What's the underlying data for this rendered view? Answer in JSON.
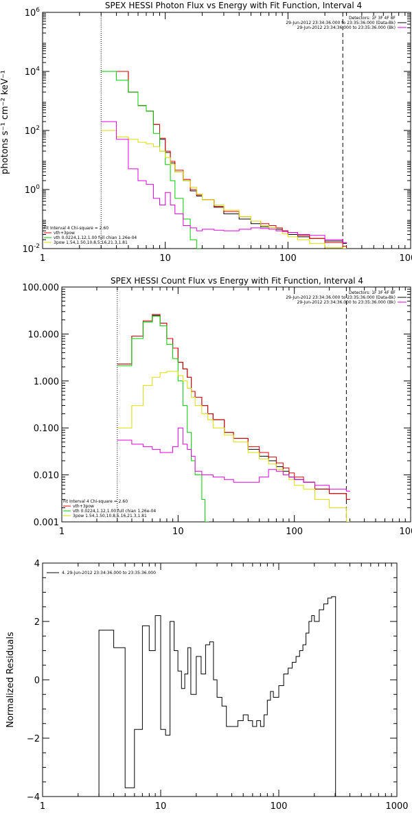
{
  "chart_data": [
    {
      "type": "line",
      "title": "SPEX HESSI Photon Flux vs Energy with Fit Function, Interval 4",
      "ylabel": "photons s⁻¹ cm⁻² keV⁻¹",
      "xlabel": "",
      "xscale": "log",
      "yscale": "log",
      "xlim": [
        1,
        1000
      ],
      "ylim": [
        0.01,
        1000000
      ],
      "x_ticks": [
        "1",
        "10",
        "100",
        "1000"
      ],
      "y_ticks": [
        {
          "v": 0.01,
          "base": "10",
          "exp": "-2"
        },
        {
          "v": 1,
          "base": "10",
          "exp": "0"
        },
        {
          "v": 100,
          "base": "10",
          "exp": "2"
        },
        {
          "v": 10000,
          "base": "10",
          "exp": "4"
        },
        {
          "v": 1000000,
          "base": "10",
          "exp": "6"
        }
      ],
      "vlines": [
        {
          "x": 3,
          "style": "dotted"
        },
        {
          "x": 280,
          "style": "dashed"
        }
      ],
      "legend_top": [
        "Detectors: 1F 3F 4F 8F",
        "29-Jun-2012 23:34:36.000 to 23:35:36.000 (Data-Bk)",
        "29-Jun-2012 23:34:36.000 to 23:35:36.000 (Bk)"
      ],
      "legend_bottom": [
        "Fit Interval 4   Chi-square = 2.60",
        "vth+3pow",
        "vth 0.0224,1.12,1.00  full chian 1.26e-04",
        "3pow 1.54,1.50,10.8,5.16,21.3,1.81"
      ],
      "legend_bottom_colors": [
        "#000000",
        "#e00000",
        "#00cc00",
        "#dddd00"
      ],
      "series": [
        {
          "color": "#000000",
          "x": [
            3,
            4,
            5,
            6,
            7,
            8,
            9,
            10,
            11,
            12,
            14,
            16,
            18,
            20,
            25,
            30,
            40,
            50,
            60,
            70,
            80,
            90,
            100,
            120,
            150,
            200,
            280
          ],
          "y": [
            10000,
            10000,
            2000,
            700,
            450,
            160,
            50,
            18,
            8,
            4,
            2,
            0.9,
            0.6,
            0.45,
            0.25,
            0.15,
            0.1,
            0.07,
            0.055,
            0.05,
            0.045,
            0.04,
            0.03,
            0.025,
            0.022,
            0.018,
            0.015
          ]
        },
        {
          "color": "#e00000",
          "x": [
            3,
            4,
            5,
            6,
            7,
            8,
            9,
            10,
            11,
            12,
            14,
            16,
            18,
            20,
            25,
            30,
            40,
            50,
            60,
            70,
            80,
            90,
            100,
            120,
            150,
            200,
            280
          ],
          "y": [
            10000,
            10000,
            2000,
            700,
            450,
            160,
            55,
            20,
            9,
            4.5,
            2.2,
            1.0,
            0.65,
            0.45,
            0.27,
            0.18,
            0.12,
            0.085,
            0.07,
            0.06,
            0.05,
            0.04,
            0.035,
            0.028,
            0.022,
            0.016,
            0.012
          ]
        },
        {
          "color": "#00cc00",
          "x": [
            3,
            4,
            5,
            6,
            7,
            8,
            9,
            10,
            11,
            12,
            14,
            16,
            18
          ],
          "y": [
            10000,
            5000,
            2000,
            700,
            450,
            80,
            20,
            7,
            2,
            0.5,
            0.1,
            0.02,
            0.01
          ]
        },
        {
          "color": "#dddd00",
          "x": [
            3,
            4,
            5,
            6,
            7,
            8,
            9,
            10,
            11,
            12,
            14,
            16,
            18,
            20,
            25,
            30,
            40,
            50,
            60,
            70,
            80,
            90,
            100,
            120,
            150,
            200,
            280
          ],
          "y": [
            100,
            60,
            50,
            40,
            35,
            28,
            20,
            12,
            7,
            4,
            2,
            1.2,
            0.7,
            0.45,
            0.3,
            0.2,
            0.12,
            0.085,
            0.06,
            0.05,
            0.04,
            0.032,
            0.025,
            0.02,
            0.015,
            0.011,
            0.008
          ]
        },
        {
          "color": "#dd00dd",
          "x": [
            3,
            4,
            5,
            6,
            7,
            8,
            9,
            10,
            11,
            12,
            14,
            16,
            18,
            20,
            25,
            30,
            40,
            50,
            60,
            70,
            80,
            90,
            100,
            120,
            150,
            200,
            280
          ],
          "y": [
            200,
            50,
            5,
            2,
            1.5,
            0.5,
            0.3,
            0.8,
            0.3,
            0.15,
            0.06,
            0.05,
            0.04,
            0.045,
            0.042,
            0.04,
            0.045,
            0.05,
            0.048,
            0.045,
            0.04,
            0.038,
            0.035,
            0.03,
            0.028,
            0.02,
            0.016
          ]
        }
      ]
    },
    {
      "type": "line",
      "title": "SPEX HESSI Count Flux vs Energy with Fit Function, Interval 4",
      "ylabel": "",
      "xlabel": "",
      "xscale": "log",
      "yscale": "log",
      "xlim": [
        1,
        1000
      ],
      "ylim": [
        0.001,
        100
      ],
      "x_ticks": [
        "1",
        "10",
        "100",
        "1000"
      ],
      "y_ticks": [
        {
          "v": 0.001,
          "label": "0.001"
        },
        {
          "v": 0.01,
          "label": "0.010"
        },
        {
          "v": 0.1,
          "label": "0.100"
        },
        {
          "v": 1,
          "label": "1.000"
        },
        {
          "v": 10,
          "label": "10.000"
        },
        {
          "v": 100,
          "label": "100.000"
        }
      ],
      "vlines": [
        {
          "x": 3,
          "style": "dotted"
        },
        {
          "x": 280,
          "style": "dashed"
        }
      ],
      "legend_top": [
        "Detectors: 1F 3F 4F 8F",
        "29-Jun-2012 23:34:36.000 to 23:35:36.000 (Data-Bk)",
        "29-Jun-2012 23:34:36.000 to 23:35:36.000 (Bk)"
      ],
      "legend_bottom": [
        "Fit Interval 4   Chi-square = 2.60",
        "vth+3pow",
        "vth 0.0224,1.12,1.00  full chian 1.26e-04",
        "3pow 1.54,1.50,10.8,5.16,21.3,1.81"
      ],
      "legend_bottom_colors": [
        "#000000",
        "#e00000",
        "#00cc00",
        "#dddd00"
      ],
      "series": [
        {
          "color": "#000000",
          "x": [
            3,
            4,
            5,
            6,
            7,
            8,
            9,
            10,
            11,
            12,
            13,
            14,
            16,
            18,
            20,
            25,
            30,
            40,
            50,
            60,
            70,
            80,
            90,
            100,
            120,
            150,
            200,
            280
          ],
          "y": [
            2.3,
            9,
            18,
            25,
            17,
            8,
            5,
            2.5,
            1.8,
            1.2,
            0.6,
            0.45,
            0.3,
            0.2,
            0.15,
            0.08,
            0.06,
            0.035,
            0.025,
            0.02,
            0.015,
            0.012,
            0.009,
            0.008,
            0.007,
            0.005,
            0.004,
            0.003
          ]
        },
        {
          "color": "#e00000",
          "x": [
            3,
            4,
            5,
            6,
            7,
            8,
            9,
            10,
            11,
            12,
            13,
            14,
            16,
            18,
            20,
            25,
            30,
            40,
            50,
            60,
            70,
            80,
            90,
            100,
            120,
            150,
            200,
            280
          ],
          "y": [
            2.3,
            9,
            19,
            26,
            17,
            8,
            5,
            2.5,
            1.8,
            1.2,
            0.6,
            0.45,
            0.3,
            0.2,
            0.15,
            0.08,
            0.06,
            0.04,
            0.03,
            0.024,
            0.018,
            0.014,
            0.011,
            0.009,
            0.007,
            0.005,
            0.004,
            0.003
          ]
        },
        {
          "color": "#00cc00",
          "x": [
            3,
            4,
            5,
            6,
            7,
            8,
            9,
            10,
            11,
            12,
            13,
            14,
            16,
            17
          ],
          "y": [
            2.1,
            8,
            18,
            24,
            15,
            6,
            3,
            1,
            0.3,
            0.08,
            0.02,
            0.01,
            0.003,
            0.001
          ]
        },
        {
          "color": "#dddd00",
          "x": [
            3,
            4,
            5,
            6,
            7,
            8,
            9,
            10,
            11,
            12,
            13,
            14,
            16,
            18,
            20,
            25,
            30,
            40,
            50,
            60,
            70,
            80,
            90,
            100,
            120,
            150,
            200,
            280
          ],
          "y": [
            0.1,
            0.3,
            0.8,
            1.2,
            1.5,
            1.6,
            1.6,
            1.3,
            1.0,
            0.7,
            0.45,
            0.3,
            0.2,
            0.15,
            0.1,
            0.07,
            0.05,
            0.03,
            0.022,
            0.017,
            0.013,
            0.01,
            0.008,
            0.006,
            0.005,
            0.003,
            0.002,
            0.001
          ]
        },
        {
          "color": "#dd00dd",
          "x": [
            3,
            4,
            5,
            6,
            7,
            8,
            9,
            10,
            11,
            12,
            13,
            14,
            16,
            18,
            20,
            25,
            30,
            40,
            50,
            60,
            70,
            80,
            90,
            100,
            120,
            150,
            200,
            280
          ],
          "y": [
            0.055,
            0.045,
            0.04,
            0.035,
            0.03,
            0.03,
            0.04,
            0.1,
            0.045,
            0.035,
            0.025,
            0.012,
            0.01,
            0.01,
            0.009,
            0.008,
            0.007,
            0.007,
            0.009,
            0.013,
            0.012,
            0.01,
            0.009,
            0.008,
            0.007,
            0.006,
            0.005,
            0.0045
          ]
        }
      ]
    },
    {
      "type": "line",
      "title": "",
      "ylabel": "Normalized Residuals",
      "xlabel": "",
      "xscale": "log",
      "yscale": "linear",
      "xlim": [
        1,
        1000
      ],
      "ylim": [
        -4,
        4
      ],
      "x_ticks": [
        "1",
        "10",
        "100",
        "1000"
      ],
      "y_ticks": [
        {
          "v": -4,
          "label": "−4"
        },
        {
          "v": -2,
          "label": "−2"
        },
        {
          "v": 0,
          "label": "0"
        },
        {
          "v": 2,
          "label": "2"
        },
        {
          "v": 4,
          "label": "4"
        }
      ],
      "vlines": [],
      "legend_top": [],
      "legend_bottom": [],
      "legend_bottom_colors": [],
      "legend_left": "4. 29-Jun-2012 23:34:36.000 to 23:35:36.000",
      "series": [
        {
          "color": "#000000",
          "x": [
            3,
            4,
            5,
            6,
            7,
            8,
            9,
            10,
            11,
            12,
            13,
            14,
            15,
            16,
            17,
            18,
            19,
            20,
            22,
            24,
            26,
            28,
            30,
            33,
            36,
            40,
            45,
            50,
            55,
            60,
            65,
            70,
            75,
            80,
            85,
            90,
            100,
            110,
            120,
            130,
            140,
            150,
            160,
            170,
            180,
            190,
            200,
            220,
            240,
            260,
            280
          ],
          "y": [
            1.7,
            1.1,
            -3.7,
            -1.7,
            1.85,
            1.0,
            2.2,
            -1.7,
            -1.9,
            2.0,
            1.0,
            0.3,
            -0.3,
            0.2,
            1.1,
            -0.5,
            -0.5,
            0.8,
            0.2,
            1.2,
            1.3,
            0.0,
            -0.6,
            -0.9,
            -1.6,
            -1.6,
            -1.4,
            -1.2,
            -1.4,
            -1.6,
            -1.4,
            -1.6,
            -1.2,
            -0.7,
            -0.4,
            -0.6,
            -0.2,
            0.2,
            0.4,
            0.6,
            0.8,
            1.0,
            1.2,
            1.6,
            2.0,
            2.2,
            2.0,
            2.4,
            2.6,
            2.8,
            2.85
          ]
        }
      ]
    }
  ]
}
